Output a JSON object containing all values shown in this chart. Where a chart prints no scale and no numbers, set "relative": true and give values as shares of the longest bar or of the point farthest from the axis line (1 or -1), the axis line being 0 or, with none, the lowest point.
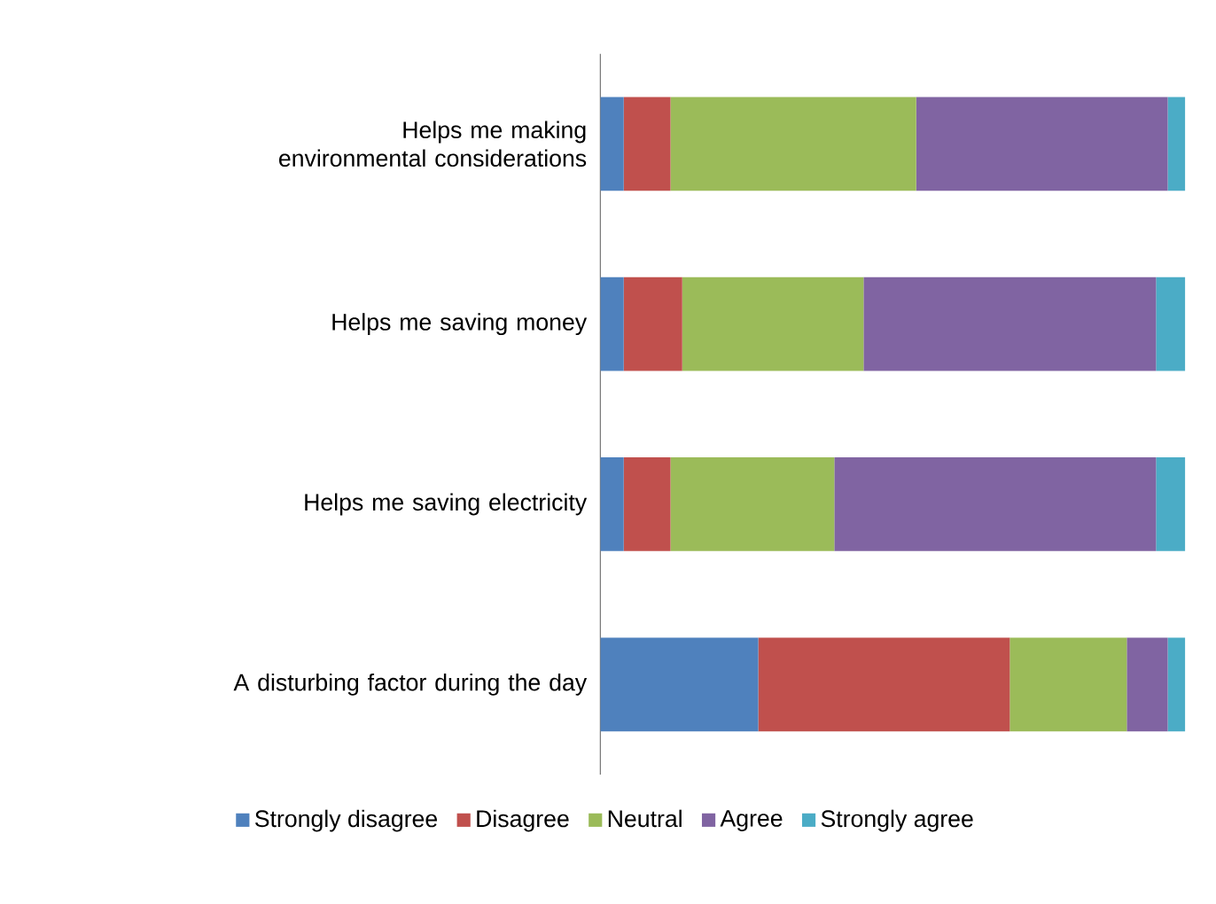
{
  "chart_data": {
    "type": "bar",
    "orientation": "horizontal",
    "stacked": true,
    "relative": true,
    "categories": [
      "Helps me making environmental considerations",
      "Helps me saving money",
      "Helps me saving electricity",
      "A disturbing factor during the day"
    ],
    "series": [
      {
        "name": "Strongly disagree",
        "color": "#4f81bd",
        "values": [
          0.04,
          0.04,
          0.04,
          0.27
        ]
      },
      {
        "name": "Disagree",
        "color": "#c0504d",
        "values": [
          0.08,
          0.1,
          0.08,
          0.43
        ]
      },
      {
        "name": "Neutral",
        "color": "#9bbb59",
        "values": [
          0.42,
          0.31,
          0.28,
          0.2
        ]
      },
      {
        "name": "Agree",
        "color": "#8064a2",
        "values": [
          0.43,
          0.5,
          0.55,
          0.07
        ]
      },
      {
        "name": "Strongly agree",
        "color": "#4bacc6",
        "values": [
          0.03,
          0.05,
          0.05,
          0.03
        ]
      }
    ],
    "legend": "bottom"
  }
}
